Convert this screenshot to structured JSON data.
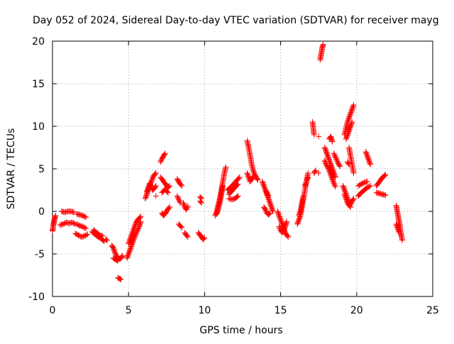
{
  "chart_data": {
    "type": "scatter",
    "title": "Day 052 of 2024, Sidereal Day-to-day VTEC variation (SDTVAR) for receiver mayg",
    "xlabel": "GPS time / hours",
    "ylabel": "SDTVAR / TECUs",
    "xlim": [
      0,
      25
    ],
    "ylim": [
      -10,
      20
    ],
    "xticks": [
      0,
      5,
      10,
      15,
      20,
      25
    ],
    "yticks": [
      -10,
      -5,
      0,
      5,
      10,
      15,
      20
    ],
    "grid": true,
    "marker": "+",
    "color": "#ff0000",
    "segments": [
      [
        [
          0.0,
          -2.3
        ],
        [
          0.03,
          -2.0
        ],
        [
          0.06,
          -1.6
        ],
        [
          0.09,
          -1.3
        ],
        [
          0.12,
          -1.0
        ],
        [
          0.15,
          -0.8
        ],
        [
          0.18,
          -0.6
        ],
        [
          0.2,
          -0.5
        ]
      ],
      [
        [
          0.5,
          -1.6
        ],
        [
          0.7,
          -1.5
        ],
        [
          0.9,
          -1.3
        ],
        [
          1.1,
          -1.4
        ],
        [
          1.3,
          -1.3
        ],
        [
          1.5,
          -1.5
        ]
      ],
      [
        [
          0.6,
          0.0
        ],
        [
          0.8,
          -0.1
        ],
        [
          1.0,
          0.0
        ],
        [
          1.2,
          0.0
        ],
        [
          1.4,
          -0.1
        ]
      ],
      [
        [
          1.5,
          -2.6
        ],
        [
          1.7,
          -2.8
        ],
        [
          1.9,
          -3.0
        ],
        [
          2.1,
          -2.9
        ],
        [
          2.3,
          -2.7
        ]
      ],
      [
        [
          1.6,
          -0.3
        ],
        [
          1.8,
          -0.4
        ],
        [
          2.0,
          -0.5
        ],
        [
          2.2,
          -0.7
        ]
      ],
      [
        [
          1.6,
          -1.5
        ],
        [
          1.8,
          -1.7
        ],
        [
          2.0,
          -1.8
        ],
        [
          2.2,
          -2.0
        ]
      ],
      [
        [
          2.6,
          -2.4
        ],
        [
          2.8,
          -2.7
        ],
        [
          3.0,
          -3.0
        ],
        [
          3.2,
          -3.2
        ],
        [
          3.4,
          -3.5
        ]
      ],
      [
        [
          2.7,
          -2.2
        ],
        [
          2.9,
          -2.5
        ],
        [
          3.1,
          -2.8
        ],
        [
          3.3,
          -2.9
        ]
      ],
      [
        [
          3.5,
          -3.3
        ],
        [
          3.6,
          -3.4
        ]
      ],
      [
        [
          3.9,
          -4.0
        ],
        [
          4.0,
          -4.3
        ],
        [
          4.1,
          -4.8
        ],
        [
          4.2,
          -5.2
        ],
        [
          4.3,
          -5.5
        ],
        [
          4.4,
          -5.6
        ],
        [
          4.5,
          -5.5
        ],
        [
          4.6,
          -5.2
        ]
      ],
      [
        [
          4.0,
          -5.5
        ],
        [
          4.1,
          -5.6
        ],
        [
          4.2,
          -5.7
        ],
        [
          4.3,
          -5.8
        ]
      ],
      [
        [
          4.3,
          -7.8
        ],
        [
          4.4,
          -7.9
        ],
        [
          4.5,
          -8.0
        ]
      ],
      [
        [
          4.9,
          -5.5
        ],
        [
          5.0,
          -5.0
        ],
        [
          5.1,
          -4.5
        ],
        [
          5.2,
          -4.0
        ],
        [
          5.3,
          -3.5
        ],
        [
          5.4,
          -3.0
        ],
        [
          5.5,
          -2.6
        ],
        [
          5.6,
          -2.2
        ],
        [
          5.7,
          -1.8
        ],
        [
          5.8,
          -1.2
        ]
      ],
      [
        [
          5.0,
          -3.8
        ],
        [
          5.1,
          -3.3
        ],
        [
          5.2,
          -2.8
        ],
        [
          5.3,
          -2.3
        ],
        [
          5.4,
          -1.8
        ],
        [
          5.5,
          -1.3
        ],
        [
          5.6,
          -1.0
        ],
        [
          5.7,
          -0.8
        ],
        [
          5.8,
          -0.6
        ]
      ],
      [
        [
          6.1,
          1.5
        ],
        [
          6.2,
          2.0
        ],
        [
          6.3,
          2.5
        ],
        [
          6.4,
          3.0
        ],
        [
          6.5,
          3.5
        ],
        [
          6.6,
          4.0
        ],
        [
          6.7,
          4.3
        ],
        [
          6.8,
          4.5
        ]
      ],
      [
        [
          6.2,
          2.3
        ],
        [
          6.3,
          2.8
        ],
        [
          6.4,
          3.3
        ],
        [
          6.5,
          2.8
        ],
        [
          6.6,
          2.5
        ],
        [
          6.7,
          2.7
        ],
        [
          6.8,
          3.0
        ]
      ],
      [
        [
          6.8,
          1.8
        ]
      ],
      [
        [
          7.1,
          5.8
        ],
        [
          7.2,
          6.2
        ],
        [
          7.3,
          6.5
        ],
        [
          7.4,
          6.8
        ]
      ],
      [
        [
          7.1,
          4.0
        ],
        [
          7.2,
          3.8
        ],
        [
          7.3,
          3.5
        ],
        [
          7.4,
          3.3
        ],
        [
          7.5,
          3.0
        ],
        [
          7.6,
          2.8
        ],
        [
          7.7,
          3.0
        ]
      ],
      [
        [
          7.2,
          2.2
        ],
        [
          7.3,
          2.4
        ],
        [
          7.4,
          2.6
        ],
        [
          7.5,
          2.4
        ],
        [
          7.6,
          2.2
        ]
      ],
      [
        [
          7.2,
          -0.2
        ],
        [
          7.3,
          -0.5
        ],
        [
          7.4,
          -0.3
        ],
        [
          7.5,
          0.0
        ],
        [
          7.6,
          0.3
        ],
        [
          7.7,
          0.5
        ]
      ],
      [
        [
          8.2,
          3.8
        ],
        [
          8.3,
          3.5
        ],
        [
          8.4,
          3.2
        ],
        [
          8.5,
          3.0
        ]
      ],
      [
        [
          8.2,
          1.8
        ],
        [
          8.3,
          1.4
        ],
        [
          8.4,
          1.0
        ]
      ],
      [
        [
          8.3,
          -1.5
        ],
        [
          8.4,
          -1.7
        ],
        [
          8.5,
          -1.9
        ]
      ],
      [
        [
          8.6,
          1.0
        ],
        [
          8.7,
          0.5
        ],
        [
          8.8,
          0.2
        ],
        [
          8.9,
          0.6
        ]
      ],
      [
        [
          8.7,
          -2.5
        ],
        [
          8.8,
          -2.8
        ],
        [
          8.9,
          -3.0
        ]
      ],
      [
        [
          9.7,
          1.7
        ],
        [
          9.8,
          1.5
        ]
      ],
      [
        [
          9.7,
          1.2
        ],
        [
          9.8,
          1.0
        ]
      ],
      [
        [
          9.6,
          -2.5
        ],
        [
          9.7,
          -2.8
        ],
        [
          9.8,
          -3.0
        ],
        [
          9.9,
          -3.3
        ],
        [
          10.0,
          -3.1
        ]
      ],
      [
        [
          10.7,
          -0.5
        ],
        [
          10.8,
          0.0
        ],
        [
          10.9,
          0.8
        ],
        [
          11.0,
          1.5
        ],
        [
          11.1,
          2.5
        ],
        [
          11.2,
          3.5
        ],
        [
          11.3,
          4.5
        ],
        [
          11.4,
          5.2
        ]
      ],
      [
        [
          10.8,
          -0.3
        ],
        [
          10.9,
          0.3
        ],
        [
          11.0,
          1.0
        ],
        [
          11.1,
          2.0
        ],
        [
          11.2,
          3.0
        ]
      ],
      [
        [
          11.6,
          1.5
        ],
        [
          11.8,
          1.4
        ],
        [
          12.0,
          1.5
        ],
        [
          12.2,
          1.8
        ]
      ],
      [
        [
          11.5,
          2.5
        ],
        [
          11.7,
          2.8
        ],
        [
          11.9,
          3.2
        ],
        [
          12.1,
          3.6
        ],
        [
          12.3,
          4.0
        ]
      ],
      [
        [
          11.6,
          2.0
        ],
        [
          11.8,
          2.4
        ],
        [
          12.0,
          2.8
        ],
        [
          12.2,
          3.2
        ]
      ],
      [
        [
          12.8,
          8.3
        ],
        [
          12.9,
          7.5
        ],
        [
          13.0,
          6.5
        ],
        [
          13.1,
          5.5
        ],
        [
          13.2,
          4.8
        ],
        [
          13.3,
          4.3
        ],
        [
          13.4,
          4.0
        ],
        [
          13.5,
          3.7
        ]
      ],
      [
        [
          12.8,
          4.5
        ],
        [
          12.9,
          4.0
        ],
        [
          13.0,
          3.5
        ],
        [
          13.1,
          3.8
        ],
        [
          13.2,
          4.1
        ]
      ],
      [
        [
          13.8,
          3.5
        ],
        [
          13.9,
          3.0
        ],
        [
          14.0,
          2.5
        ],
        [
          14.1,
          2.0
        ],
        [
          14.2,
          1.5
        ],
        [
          14.3,
          1.0
        ],
        [
          14.4,
          0.5
        ],
        [
          14.5,
          0.0
        ]
      ],
      [
        [
          13.9,
          0.5
        ],
        [
          14.0,
          0.2
        ],
        [
          14.1,
          -0.2
        ],
        [
          14.2,
          -0.4
        ],
        [
          14.3,
          -0.2
        ]
      ],
      [
        [
          14.0,
          2.5
        ],
        [
          14.1,
          2.2
        ],
        [
          14.2,
          1.8
        ]
      ],
      [
        [
          14.8,
          0.0
        ],
        [
          14.9,
          -0.5
        ],
        [
          15.0,
          -1.0
        ],
        [
          15.1,
          -1.5
        ],
        [
          15.2,
          -2.0
        ],
        [
          15.3,
          -2.5
        ],
        [
          15.4,
          -2.8
        ],
        [
          15.5,
          -3.0
        ]
      ],
      [
        [
          14.9,
          -1.8
        ],
        [
          15.0,
          -2.2
        ],
        [
          15.1,
          -2.5
        ],
        [
          15.2,
          -2.3
        ],
        [
          15.3,
          -1.8
        ],
        [
          15.4,
          -1.2
        ]
      ],
      [
        [
          16.1,
          -1.5
        ],
        [
          16.2,
          -1.0
        ],
        [
          16.3,
          -0.5
        ],
        [
          16.4,
          0.5
        ],
        [
          16.5,
          1.5
        ],
        [
          16.6,
          2.5
        ],
        [
          16.7,
          3.5
        ],
        [
          16.8,
          4.5
        ]
      ],
      [
        [
          16.2,
          -0.5
        ],
        [
          16.3,
          0.0
        ],
        [
          16.4,
          1.0
        ],
        [
          16.5,
          1.8
        ]
      ],
      [
        [
          16.6,
          3.0
        ],
        [
          16.7,
          3.5
        ],
        [
          16.8,
          4.0
        ]
      ],
      [
        [
          17.1,
          10.5
        ],
        [
          17.2,
          9.0
        ]
      ],
      [
        [
          17.2,
          4.5
        ],
        [
          17.3,
          4.8
        ]
      ],
      [
        [
          17.5,
          8.8
        ]
      ],
      [
        [
          17.5,
          4.5
        ]
      ],
      [
        [
          17.6,
          17.8
        ],
        [
          17.65,
          18.3
        ],
        [
          17.7,
          18.8
        ],
        [
          17.75,
          19.3
        ],
        [
          17.8,
          19.6
        ]
      ],
      [
        [
          17.9,
          7.5
        ],
        [
          18.0,
          7.0
        ],
        [
          18.1,
          6.5
        ],
        [
          18.2,
          6.0
        ],
        [
          18.3,
          5.5
        ],
        [
          18.4,
          5.0
        ],
        [
          18.5,
          4.5
        ],
        [
          18.6,
          4.0
        ]
      ],
      [
        [
          17.9,
          6.0
        ],
        [
          18.0,
          5.5
        ],
        [
          18.1,
          5.2
        ],
        [
          18.2,
          4.8
        ],
        [
          18.3,
          4.3
        ],
        [
          18.4,
          3.8
        ],
        [
          18.5,
          3.3
        ],
        [
          18.6,
          2.9
        ]
      ],
      [
        [
          18.2,
          8.5
        ],
        [
          18.3,
          8.8
        ],
        [
          18.4,
          8.2
        ]
      ],
      [
        [
          18.5,
          6.8
        ],
        [
          18.6,
          6.4
        ],
        [
          18.7,
          6.0
        ],
        [
          18.8,
          5.6
        ],
        [
          18.9,
          5.3
        ]
      ],
      [
        [
          19.1,
          3.0
        ],
        [
          19.2,
          2.5
        ],
        [
          19.3,
          2.0
        ],
        [
          19.4,
          1.5
        ],
        [
          19.5,
          1.0
        ],
        [
          19.6,
          0.8
        ],
        [
          19.7,
          1.2
        ],
        [
          19.8,
          1.5
        ]
      ],
      [
        [
          19.2,
          2.0
        ],
        [
          19.3,
          1.5
        ],
        [
          19.4,
          1.0
        ],
        [
          19.5,
          0.7
        ],
        [
          19.6,
          0.5
        ]
      ],
      [
        [
          19.2,
          9.0
        ],
        [
          19.3,
          9.8
        ],
        [
          19.4,
          10.5
        ],
        [
          19.5,
          11.0
        ],
        [
          19.6,
          11.5
        ],
        [
          19.7,
          12.0
        ],
        [
          19.8,
          12.5
        ]
      ],
      [
        [
          19.3,
          8.5
        ],
        [
          19.4,
          9.0
        ],
        [
          19.5,
          9.5
        ],
        [
          19.6,
          10.0
        ],
        [
          19.7,
          10.5
        ]
      ],
      [
        [
          19.5,
          7.5
        ],
        [
          19.6,
          6.5
        ],
        [
          19.7,
          5.5
        ],
        [
          19.8,
          4.5
        ]
      ],
      [
        [
          19.4,
          5.8
        ],
        [
          19.5,
          5.5
        ]
      ],
      [
        [
          20.1,
          1.8
        ],
        [
          20.3,
          2.2
        ],
        [
          20.5,
          2.5
        ],
        [
          20.7,
          2.8
        ],
        [
          20.9,
          3.0
        ]
      ],
      [
        [
          20.1,
          3.0
        ],
        [
          20.3,
          3.2
        ],
        [
          20.5,
          3.4
        ],
        [
          20.7,
          3.5
        ]
      ],
      [
        [
          20.6,
          7.0
        ],
        [
          20.7,
          6.5
        ],
        [
          20.8,
          6.0
        ],
        [
          20.9,
          5.5
        ]
      ],
      [
        [
          21.3,
          3.0
        ],
        [
          21.5,
          3.5
        ],
        [
          21.7,
          4.0
        ],
        [
          21.9,
          4.3
        ]
      ],
      [
        [
          21.3,
          2.2
        ],
        [
          21.5,
          2.1
        ],
        [
          21.7,
          2.0
        ],
        [
          21.9,
          1.9
        ]
      ],
      [
        [
          22.6,
          0.7
        ],
        [
          22.65,
          0.2
        ],
        [
          22.7,
          -0.3
        ],
        [
          22.75,
          -0.8
        ],
        [
          22.8,
          -1.3
        ],
        [
          22.85,
          -1.8
        ],
        [
          22.9,
          -2.5
        ],
        [
          22.95,
          -3.0
        ],
        [
          23.0,
          -3.4
        ]
      ],
      [
        [
          22.6,
          -1.5
        ],
        [
          22.7,
          -2.0
        ],
        [
          22.8,
          -2.5
        ]
      ]
    ]
  }
}
